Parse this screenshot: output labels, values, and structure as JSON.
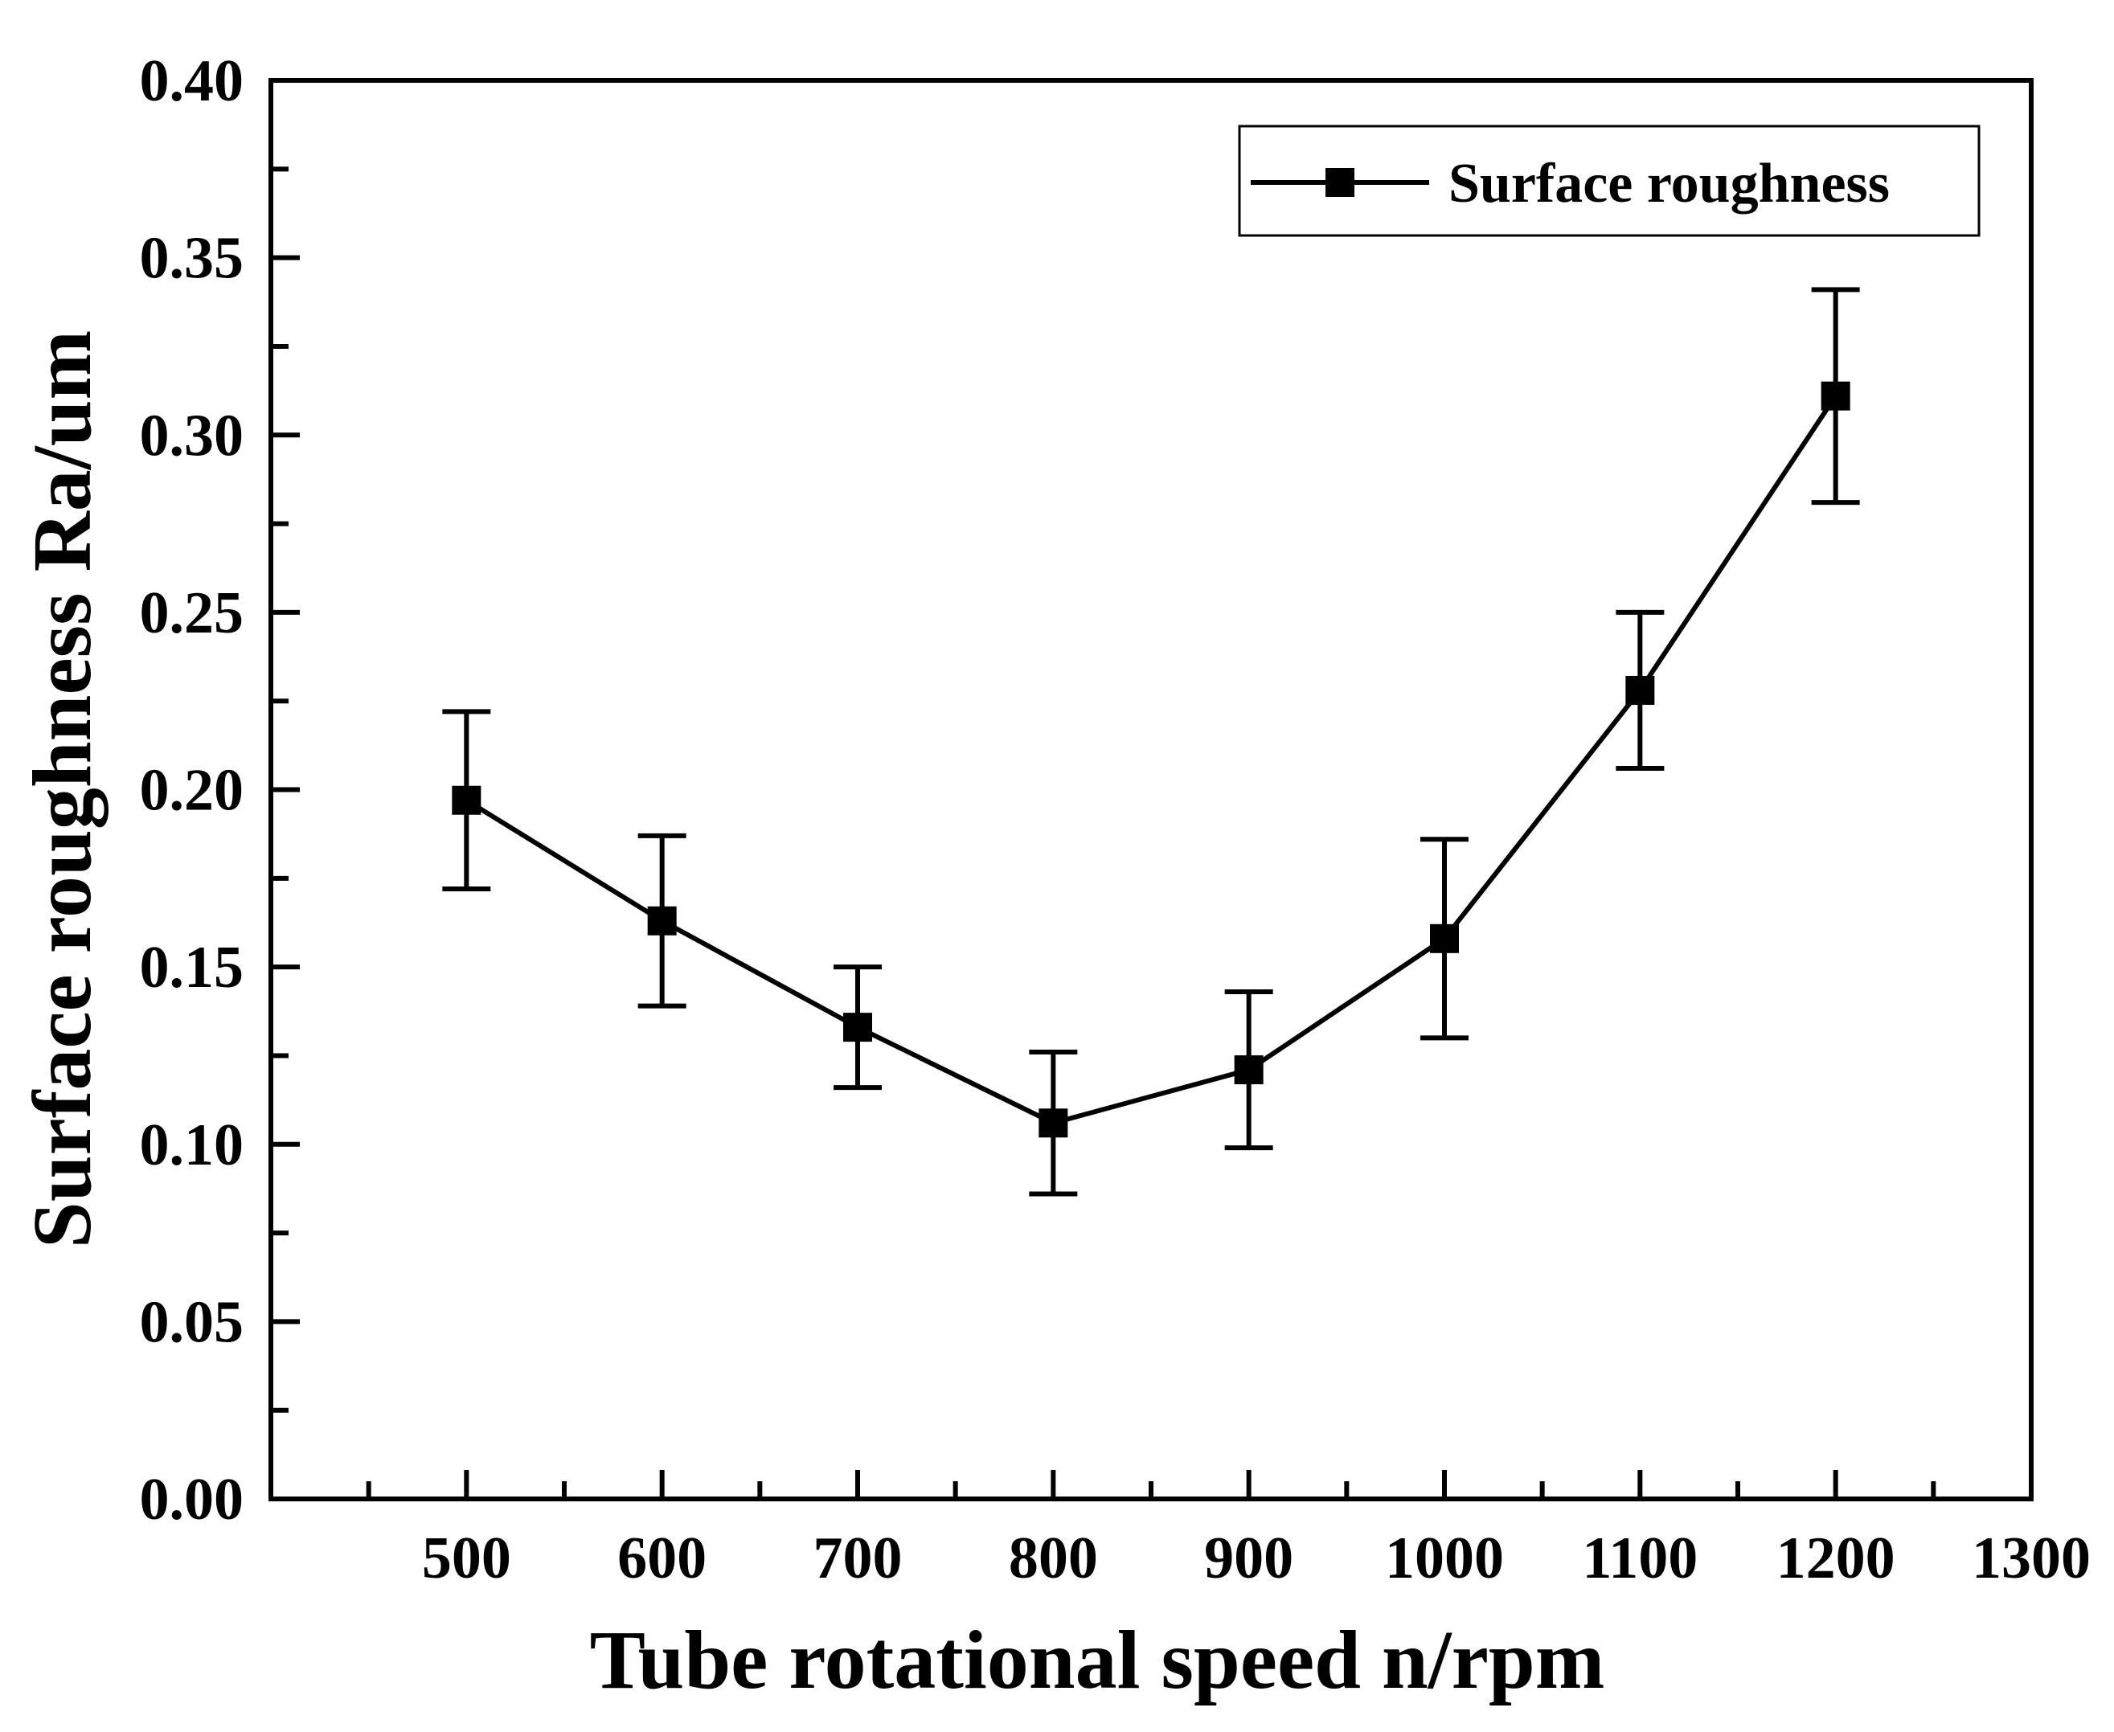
{
  "chart_data": {
    "type": "line",
    "title": "",
    "xlabel": "Tube rotational speed n/rpm",
    "ylabel": "Surface roughness Ra/um",
    "xlim": [
      400,
      1300
    ],
    "ylim": [
      0.0,
      0.4
    ],
    "x_ticks": [
      500,
      600,
      700,
      800,
      900,
      1000,
      1100,
      1200,
      1300
    ],
    "x_tick_labels": [
      "500",
      "600",
      "700",
      "800",
      "900",
      "1000",
      "1100",
      "1200",
      "1300"
    ],
    "y_ticks": [
      0.0,
      0.05,
      0.1,
      0.15,
      0.2,
      0.25,
      0.3,
      0.35,
      0.4
    ],
    "y_tick_labels": [
      "0.00",
      "0.05",
      "0.10",
      "0.15",
      "0.20",
      "0.25",
      "0.30",
      "0.35",
      "0.40"
    ],
    "grid": false,
    "legend_position": "top-right",
    "series": [
      {
        "name": "Surface roughness",
        "marker": "square",
        "color": "#000000",
        "x": [
          500,
          600,
          700,
          800,
          900,
          1000,
          1100,
          1200
        ],
        "y": [
          0.197,
          0.163,
          0.133,
          0.106,
          0.121,
          0.158,
          0.228,
          0.311
        ],
        "err_low": [
          0.172,
          0.139,
          0.116,
          0.086,
          0.099,
          0.13,
          0.206,
          0.281
        ],
        "err_high": [
          0.222,
          0.187,
          0.15,
          0.126,
          0.143,
          0.186,
          0.25,
          0.341
        ]
      }
    ]
  }
}
